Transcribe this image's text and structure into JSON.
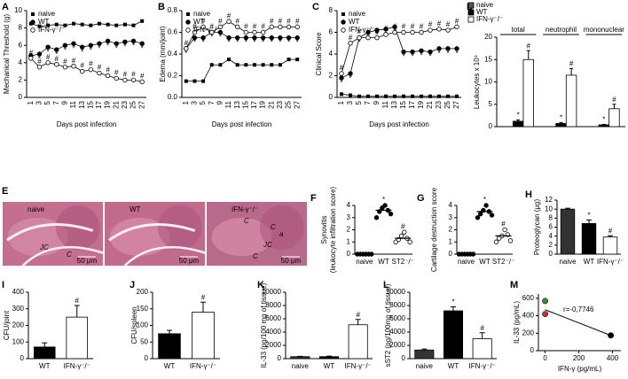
{
  "chart_data": [
    {
      "panel": "A",
      "type": "line",
      "ylabel": "Mechanical Threshold (g)",
      "xlabel": "Days post infection",
      "categories": [
        "1",
        "3",
        "5",
        "7",
        "9",
        "11",
        "13",
        "15",
        "17",
        "19",
        "21",
        "23",
        "25",
        "27"
      ],
      "ylim": [
        0,
        10
      ],
      "yticks": [
        0,
        2,
        4,
        6,
        8,
        10
      ],
      "series": [
        {
          "name": "naive",
          "marker": "square",
          "color": "#000000",
          "values": [
            8.5,
            8.2,
            8.3,
            8.4,
            8.3,
            8.5,
            8.4,
            8.3,
            8.5,
            8.4,
            8.3,
            8.4,
            8.3,
            8.8
          ]
        },
        {
          "name": "WT",
          "marker": "circle",
          "color": "#000000",
          "values": [
            4.8,
            5.0,
            5.8,
            5.5,
            6.0,
            6.2,
            5.8,
            6.0,
            6.2,
            6.5,
            6.2,
            6.4,
            6.5,
            6.2
          ],
          "sig": [
            "*",
            "*",
            "*",
            "*",
            "*",
            "*",
            "*",
            "*",
            "*",
            "*",
            "*",
            "*",
            "*",
            "*"
          ]
        },
        {
          "name": "IFN-γ⁻/⁻",
          "marker": "open-circle",
          "color": "#000000",
          "values": [
            4.5,
            3.5,
            4.0,
            3.8,
            3.5,
            3.6,
            3.0,
            3.2,
            2.8,
            2.5,
            2.2,
            2.0,
            2.0,
            1.8
          ],
          "sig": [
            "#",
            "#",
            "#",
            "#",
            "#",
            "#",
            "#",
            "#",
            "#",
            "#",
            "#",
            "#",
            "#",
            "#"
          ]
        }
      ]
    },
    {
      "panel": "B",
      "type": "line",
      "ylabel": "Edema (mm/joint)",
      "xlabel": "Days post infection",
      "categories": [
        "1",
        "3",
        "5",
        "7",
        "9",
        "11",
        "13",
        "15",
        "17",
        "19",
        "21",
        "23",
        "25",
        "27"
      ],
      "ylim": [
        0,
        0.8
      ],
      "yticks": [
        {
          "value": 0,
          "label": "0.0"
        },
        0.2,
        0.4,
        0.6,
        0.8
      ],
      "series": [
        {
          "name": "naive",
          "marker": "square",
          "color": "#000000",
          "values": [
            0.15,
            0.15,
            0.15,
            0.3,
            0.3,
            0.35,
            0.3,
            0.3,
            0.3,
            0.3,
            0.3,
            0.3,
            0.35,
            0.35
          ]
        },
        {
          "name": "WT",
          "marker": "circle",
          "color": "#000000",
          "values": [
            0.45,
            0.55,
            0.55,
            0.6,
            0.6,
            0.55,
            0.55,
            0.55,
            0.55,
            0.55,
            0.55,
            0.55,
            0.55,
            0.55
          ],
          "sig": [
            "*",
            "*",
            "*",
            "*",
            "*",
            "*",
            "*",
            "*",
            "*",
            "*",
            "*",
            "*",
            "*",
            "*"
          ]
        },
        {
          "name": "IFN-γ⁻/⁻",
          "marker": "open-circle",
          "color": "#000000",
          "values": [
            0.45,
            0.6,
            0.65,
            0.6,
            0.65,
            0.7,
            0.65,
            0.6,
            0.6,
            0.6,
            0.65,
            0.65,
            0.65,
            0.65
          ],
          "sig": [
            "#",
            "#",
            "#",
            "#",
            "#",
            "#",
            "#",
            "#",
            "#",
            "#",
            "#",
            "#",
            "#",
            "#"
          ]
        }
      ]
    },
    {
      "panel": "C",
      "type": "line",
      "ylabel": "Clinical Score",
      "xlabel": "Days post infection",
      "categories": [
        "1",
        "3",
        "5",
        "7",
        "9",
        "11",
        "13",
        "15",
        "17",
        "19",
        "21",
        "23",
        "25",
        "27"
      ],
      "ylim": [
        0,
        8
      ],
      "yticks": [
        0,
        2,
        4,
        6,
        8
      ],
      "series": [
        {
          "name": "naive",
          "marker": "square",
          "color": "#000000",
          "values": [
            0.3,
            0.2,
            0.1,
            0.1,
            0.1,
            0.1,
            0.1,
            0.1,
            0.1,
            0.1,
            0.1,
            0.1,
            0.1,
            0.1
          ]
        },
        {
          "name": "WT",
          "marker": "circle",
          "color": "#000000",
          "values": [
            1.8,
            2.2,
            5.5,
            6.0,
            6.2,
            6.3,
            6.5,
            4.2,
            4.2,
            4.3,
            4.2,
            4.5,
            4.5,
            4.5
          ],
          "sig": [
            "*",
            "*",
            "*",
            "*",
            "*",
            "*",
            "*",
            "*",
            "*",
            "*",
            "*",
            "*",
            "*",
            "*"
          ]
        },
        {
          "name": "IFN-γ⁻/⁻",
          "marker": "open-circle",
          "color": "#000000",
          "values": [
            2.2,
            5.0,
            5.5,
            5.5,
            5.5,
            5.8,
            6.0,
            6.0,
            6.0,
            6.0,
            6.2,
            6.3,
            6.2,
            6.5
          ],
          "sig": [
            "#",
            "#",
            "#",
            "#",
            "#",
            "#",
            "#",
            "#",
            "#",
            "#",
            "#",
            "#",
            "#",
            "#"
          ]
        }
      ]
    },
    {
      "panel": "D",
      "type": "grouped-bar",
      "ylabel": "Leukocytes x 10⁴",
      "categories": [
        "total",
        "neutrophil",
        "mononuclear"
      ],
      "ylim": [
        0,
        20
      ],
      "yticks": [
        0,
        5,
        10,
        15,
        20
      ],
      "series": [
        {
          "name": "naive",
          "color": "#555555",
          "values": [
            0,
            0,
            0
          ],
          "errors": [
            0,
            0,
            0
          ]
        },
        {
          "name": "WT",
          "color": "#000000",
          "values": [
            1.2,
            0.7,
            0.4
          ],
          "errors": [
            0.3,
            0.2,
            0.1
          ],
          "sig": [
            "*",
            "*",
            "*"
          ]
        },
        {
          "name": "IFN-γ⁻/⁻",
          "color": "#ffffff",
          "values": [
            15,
            11.5,
            4
          ],
          "errors": [
            2,
            1.5,
            1
          ],
          "sig": [
            "#",
            "#",
            "#"
          ]
        }
      ]
    },
    {
      "panel": "E",
      "type": "micrograph",
      "images": [
        {
          "title": "naive",
          "labels": [
            "JC",
            "C"
          ],
          "scale": "50 μm"
        },
        {
          "title": "WT",
          "labels": [],
          "scale": "50 μm"
        },
        {
          "title": "IFN-γ⁻/⁻",
          "labels": [
            "C",
            "C",
            "a",
            "JC",
            "C"
          ],
          "scale": "50 μm"
        }
      ]
    },
    {
      "panel": "F",
      "type": "dot",
      "ylabel": [
        "Synovitis",
        "(leukocyte infiltration score)"
      ],
      "categories": [
        "naive",
        "WT",
        "ST2⁻/⁻"
      ],
      "ylim": [
        0,
        4
      ],
      "yticks": [
        0,
        1,
        2,
        3,
        4
      ],
      "points": [
        [
          0,
          0,
          0,
          0,
          0,
          0
        ],
        [
          3.0,
          3.5,
          3.8,
          4.0,
          3.6,
          3.3
        ],
        [
          1.0,
          1.2,
          1.5,
          1.8,
          1.3,
          1.0
        ]
      ],
      "means": [
        0,
        3.6,
        1.3
      ],
      "fills": [
        "#000000",
        "#000000",
        "#ffffff"
      ],
      "sig": [
        null,
        "*",
        "#"
      ]
    },
    {
      "panel": "G",
      "type": "dot",
      "ylabel": "Cartilage destruction score",
      "categories": [
        "naive",
        "WT",
        "ST2⁻/⁻"
      ],
      "ylim": [
        0,
        4
      ],
      "yticks": [
        0,
        1,
        2,
        3,
        4
      ],
      "points": [
        [
          0,
          0,
          0,
          0,
          0,
          0
        ],
        [
          3.0,
          3.3,
          3.6,
          4.0,
          3.5,
          3.2
        ],
        [
          1.0,
          1.3,
          1.5,
          2.0,
          1.6,
          1.1
        ]
      ],
      "means": [
        0,
        3.5,
        1.5
      ],
      "fills": [
        "#000000",
        "#000000",
        "#ffffff"
      ],
      "sig": [
        null,
        "*",
        "#"
      ]
    },
    {
      "panel": "H",
      "type": "bar",
      "ylabel": "Proteoglycan (μg)",
      "categories": [
        "naive",
        "WT",
        "IFN-γ⁻/⁻"
      ],
      "values": [
        10,
        6.8,
        3.8
      ],
      "errors": [
        0.2,
        0.8,
        0.3
      ],
      "colors": [
        "#333333",
        "#000000",
        "#ffffff"
      ],
      "sig": [
        null,
        "*",
        "#"
      ],
      "ylim": [
        0,
        12
      ],
      "yticks": [
        0,
        2,
        4,
        6,
        8,
        10,
        12
      ]
    },
    {
      "panel": "I",
      "type": "bar",
      "ylabel": "CFU/joint",
      "categories": [
        "WT",
        "IFN-γ⁻/⁻"
      ],
      "values": [
        70,
        250
      ],
      "errors": [
        25,
        70
      ],
      "colors": [
        "#000000",
        "#ffffff"
      ],
      "sig": [
        null,
        "#"
      ],
      "ylim": [
        0,
        400
      ],
      "yticks": [
        0,
        100,
        200,
        300,
        400
      ]
    },
    {
      "panel": "J",
      "type": "bar",
      "ylabel": "CFU/spleen",
      "categories": [
        "WT",
        "IFN-γ⁻/⁻"
      ],
      "values": [
        75,
        140
      ],
      "errors": [
        10,
        30
      ],
      "colors": [
        "#000000",
        "#ffffff"
      ],
      "sig": [
        null,
        "#"
      ],
      "ylim": [
        0,
        200
      ],
      "yticks": [
        0,
        50,
        100,
        150,
        200
      ]
    },
    {
      "panel": "K",
      "type": "bar",
      "ylabel": "IL-33 (pg/100 mg of tissue)",
      "categories": [
        "naive",
        "WT",
        "IFN-γ⁻/⁻"
      ],
      "values": [
        300,
        300,
        5100
      ],
      "errors": [
        50,
        80,
        800
      ],
      "colors": [
        "#333333",
        "#000000",
        "#ffffff"
      ],
      "sig": [
        null,
        null,
        "#"
      ],
      "ylim": [
        0,
        10000
      ],
      "yticks": [
        0,
        2000,
        4000,
        6000,
        8000,
        10000
      ]
    },
    {
      "panel": "L",
      "type": "bar",
      "ylabel": "sST2 (pg/100mg of tissue)",
      "categories": [
        "naive",
        "WT",
        "IFN-γ⁻/⁻"
      ],
      "values": [
        1300,
        7200,
        3000
      ],
      "errors": [
        150,
        600,
        900
      ],
      "colors": [
        "#333333",
        "#000000",
        "#ffffff"
      ],
      "sig": [
        null,
        "*",
        "#"
      ],
      "ylim": [
        0,
        10000
      ],
      "yticks": [
        0,
        2000,
        4000,
        6000,
        8000,
        10000
      ]
    },
    {
      "panel": "M",
      "type": "scatter",
      "ylabel": "IL-33 (pg/mL)",
      "xlabel": "IFN-γ (pg/mL)",
      "x": [
        0,
        0,
        390
      ],
      "y": [
        570,
        420,
        175
      ],
      "colors": [
        "#2e8b3a",
        "#c0302a",
        "#000000"
      ],
      "fit_x": [
        0,
        390
      ],
      "fit_y": [
        470,
        175
      ],
      "annotation": "r=-0,7746",
      "xlim": [
        -40,
        450
      ],
      "xticks": [
        0,
        200,
        400
      ],
      "ylim": [
        0,
        650
      ],
      "yticks": [
        0,
        200,
        400,
        600
      ]
    }
  ]
}
